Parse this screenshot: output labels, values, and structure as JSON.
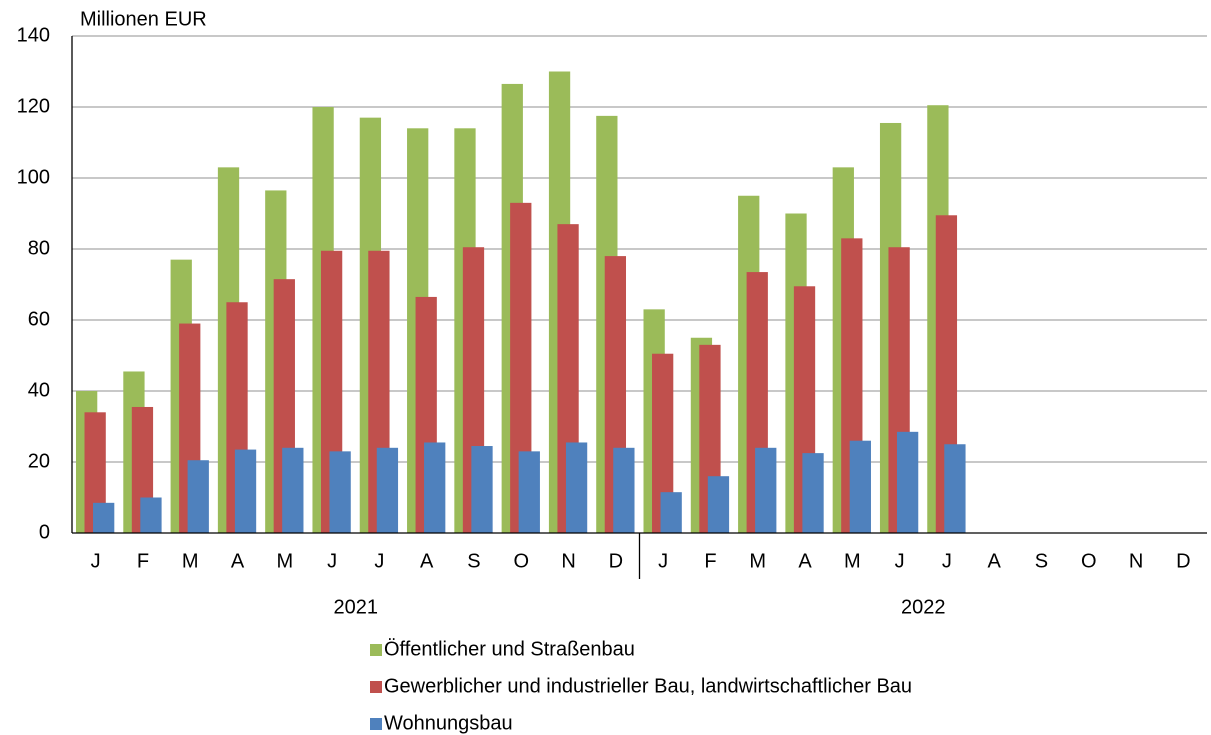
{
  "chart_data": {
    "type": "bar",
    "y_axis_label": "Millionen EUR",
    "categories": [
      "J",
      "F",
      "M",
      "A",
      "M",
      "J",
      "J",
      "A",
      "S",
      "O",
      "N",
      "D",
      "J",
      "F",
      "M",
      "A",
      "M",
      "J",
      "J",
      "A",
      "S",
      "O",
      "N",
      "D"
    ],
    "year_labels": [
      "2021",
      "2022"
    ],
    "series": [
      {
        "name": "Öffentlicher und Straßenbau",
        "color": "#9bbb59",
        "values": [
          40,
          45.5,
          77,
          103,
          96.5,
          120,
          117,
          114,
          114,
          126.5,
          130,
          117.5,
          63,
          55,
          95,
          90,
          103,
          115.5,
          120.5,
          null,
          null,
          null,
          null,
          null
        ]
      },
      {
        "name": "Gewerblicher und industrieller Bau, landwirtschaftlicher Bau",
        "color": "#c0504d",
        "values": [
          34,
          35.5,
          59,
          65,
          71.5,
          79.5,
          79.5,
          66.5,
          80.5,
          93,
          87,
          78,
          50.5,
          53,
          73.5,
          69.5,
          83,
          80.5,
          89.5,
          null,
          null,
          null,
          null,
          null
        ]
      },
      {
        "name": "Wohnungsbau",
        "color": "#4f81bd",
        "values": [
          8.5,
          10,
          20.5,
          23.5,
          24,
          23,
          24,
          25.5,
          24.5,
          23,
          25.5,
          24,
          11.5,
          16,
          24,
          22.5,
          26,
          28.5,
          25,
          null,
          null,
          null,
          null,
          null
        ]
      }
    ],
    "ylim": [
      0,
      140
    ],
    "yticks": [
      0,
      20,
      40,
      60,
      80,
      100,
      120,
      140
    ],
    "grid": true
  }
}
